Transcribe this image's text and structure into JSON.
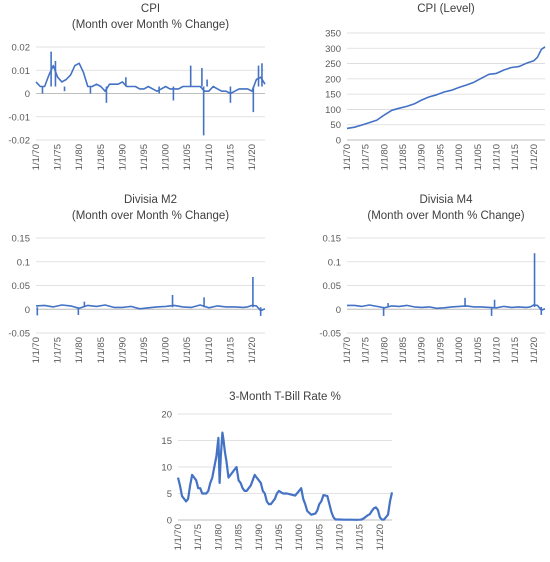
{
  "colors": {
    "series": "#4472c4",
    "grid": "#d9d9d9",
    "axis": "#bfbfbf",
    "text": "#595959"
  },
  "x_tick_labels": [
    "1/1/70",
    "1/1/75",
    "1/1/80",
    "1/1/85",
    "1/1/90",
    "1/1/95",
    "1/1/00",
    "1/1/05",
    "1/1/10",
    "1/1/15",
    "1/1/20"
  ],
  "chart_data": [
    {
      "id": "cpi-mom",
      "type": "line",
      "title_lines": [
        "CPI",
        "(Month over Month % Change)"
      ],
      "x_range": [
        1970,
        2023
      ],
      "ylim": [
        -0.02,
        0.02
      ],
      "y_ticks": [
        -0.02,
        -0.01,
        0,
        0.01,
        0.02
      ],
      "y_tick_labels": [
        "-0.02",
        "-0.01",
        "0",
        "0.01",
        "0.02"
      ],
      "grid": true,
      "x": [
        1970,
        1971,
        1972,
        1973,
        1974,
        1975,
        1976,
        1977,
        1978,
        1979,
        1980,
        1981,
        1982,
        1983,
        1984,
        1985,
        1986,
        1987,
        1988,
        1989,
        1990,
        1991,
        1992,
        1993,
        1994,
        1995,
        1996,
        1997,
        1998,
        1999,
        2000,
        2001,
        2002,
        2003,
        2004,
        2005,
        2006,
        2007,
        2008,
        2009,
        2010,
        2011,
        2012,
        2013,
        2014,
        2015,
        2016,
        2017,
        2018,
        2019,
        2020,
        2021,
        2022,
        2023
      ],
      "values": [
        0.005,
        0.003,
        0.003,
        0.008,
        0.012,
        0.007,
        0.005,
        0.006,
        0.008,
        0.012,
        0.013,
        0.009,
        0.003,
        0.003,
        0.004,
        0.003,
        0.001,
        0.004,
        0.004,
        0.004,
        0.005,
        0.003,
        0.003,
        0.003,
        0.002,
        0.002,
        0.003,
        0.002,
        0.001,
        0.002,
        0.003,
        0.002,
        0.002,
        0.002,
        0.003,
        0.003,
        0.003,
        0.003,
        0.003,
        0.001,
        0.001,
        0.003,
        0.002,
        0.001,
        0.001,
        0.0,
        0.001,
        0.002,
        0.002,
        0.002,
        0.001,
        0.006,
        0.007,
        0.004
      ],
      "spikes": [
        [
          1971.5,
          0.0
        ],
        [
          1973.5,
          0.018
        ],
        [
          1974.5,
          0.014
        ],
        [
          1976.6,
          0.001
        ],
        [
          1982.6,
          0.0
        ],
        [
          1986.3,
          -0.004
        ],
        [
          1990.8,
          0.007
        ],
        [
          1998.5,
          0.0
        ],
        [
          2001.8,
          -0.003
        ],
        [
          2005.8,
          0.012
        ],
        [
          2008.8,
          -0.018
        ],
        [
          2008.4,
          0.011
        ],
        [
          2009.6,
          0.006
        ],
        [
          2015.0,
          -0.004
        ],
        [
          2020.3,
          -0.008
        ],
        [
          2021.5,
          0.012
        ],
        [
          2022.3,
          0.013
        ]
      ]
    },
    {
      "id": "cpi-level",
      "type": "line",
      "title_lines": [
        "CPI (Level)"
      ],
      "x_range": [
        1970,
        2023
      ],
      "ylim": [
        0,
        350
      ],
      "y_ticks": [
        0,
        50,
        100,
        150,
        200,
        250,
        300,
        350
      ],
      "y_tick_labels": [
        "0",
        "50",
        "100",
        "150",
        "200",
        "250",
        "300",
        "350"
      ],
      "grid": true,
      "x": [
        1970,
        1972,
        1974,
        1976,
        1978,
        1980,
        1982,
        1984,
        1986,
        1988,
        1990,
        1992,
        1994,
        1996,
        1998,
        2000,
        2002,
        2004,
        2006,
        2008,
        2010,
        2012,
        2014,
        2016,
        2018,
        2020,
        2021,
        2022,
        2023
      ],
      "values": [
        38,
        42,
        49,
        57,
        65,
        82,
        97,
        104,
        110,
        118,
        131,
        141,
        148,
        157,
        163,
        172,
        180,
        189,
        202,
        215,
        218,
        229,
        237,
        240,
        251,
        259,
        271,
        296,
        305
      ]
    },
    {
      "id": "divisia-m2",
      "type": "line",
      "title_lines": [
        "Divisia M2",
        "(Month over Month % Change)"
      ],
      "x_range": [
        1970,
        2023
      ],
      "ylim": [
        -0.05,
        0.15
      ],
      "y_ticks": [
        -0.05,
        0,
        0.05,
        0.1,
        0.15
      ],
      "y_tick_labels": [
        "-0.05",
        "0",
        "0.05",
        "0.1",
        "0.15"
      ],
      "grid": true,
      "x": [
        1970,
        1972,
        1974,
        1976,
        1978,
        1980,
        1982,
        1984,
        1986,
        1988,
        1990,
        1992,
        1994,
        1996,
        1998,
        2000,
        2002,
        2004,
        2006,
        2008,
        2010,
        2012,
        2014,
        2016,
        2018,
        2019,
        2020,
        2021,
        2022,
        2023
      ],
      "values": [
        0.007,
        0.008,
        0.005,
        0.009,
        0.007,
        0.002,
        0.008,
        0.006,
        0.009,
        0.004,
        0.004,
        0.006,
        0.001,
        0.003,
        0.005,
        0.006,
        0.008,
        0.005,
        0.004,
        0.009,
        0.003,
        0.007,
        0.005,
        0.005,
        0.004,
        0.005,
        0.008,
        0.007,
        -0.003,
        0.001
      ],
      "spikes": [
        [
          1970.3,
          -0.013
        ],
        [
          1979.8,
          -0.012
        ],
        [
          1981.2,
          0.016
        ],
        [
          2001.6,
          0.03
        ],
        [
          2008.9,
          0.025
        ],
        [
          2020.2,
          0.068
        ],
        [
          2022.0,
          -0.014
        ]
      ]
    },
    {
      "id": "divisia-m4",
      "type": "line",
      "title_lines": [
        "Divisia M4",
        "(Month over Month % Change)"
      ],
      "x_range": [
        1970,
        2023
      ],
      "ylim": [
        -0.05,
        0.15
      ],
      "y_ticks": [
        -0.05,
        0,
        0.05,
        0.1,
        0.15
      ],
      "y_tick_labels": [
        "-0.05",
        "0",
        "0.05",
        "0.1",
        "0.15"
      ],
      "grid": true,
      "x": [
        1970,
        1972,
        1974,
        1976,
        1978,
        1980,
        1982,
        1984,
        1986,
        1988,
        1990,
        1992,
        1994,
        1996,
        1998,
        2000,
        2002,
        2004,
        2006,
        2008,
        2010,
        2012,
        2014,
        2016,
        2018,
        2019,
        2020,
        2021,
        2022,
        2023
      ],
      "values": [
        0.008,
        0.008,
        0.006,
        0.009,
        0.006,
        0.003,
        0.007,
        0.006,
        0.008,
        0.005,
        0.004,
        0.005,
        0.002,
        0.003,
        0.005,
        0.006,
        0.007,
        0.005,
        0.005,
        0.004,
        0.003,
        0.006,
        0.004,
        0.005,
        0.004,
        0.005,
        0.009,
        0.008,
        -0.002,
        0.001
      ],
      "spikes": [
        [
          1979.8,
          -0.014
        ],
        [
          1981.0,
          0.013
        ],
        [
          2001.6,
          0.024
        ],
        [
          2008.7,
          -0.014
        ],
        [
          2009.5,
          0.02
        ],
        [
          2020.2,
          0.118
        ],
        [
          2022.0,
          -0.012
        ]
      ]
    },
    {
      "id": "tbill",
      "type": "line",
      "title_lines": [
        "3-Month T-Bill Rate %"
      ],
      "x_range": [
        1970,
        2023
      ],
      "ylim": [
        0,
        20
      ],
      "y_ticks": [
        0,
        5,
        10,
        15,
        20
      ],
      "y_tick_labels": [
        "0",
        "5",
        "10",
        "15",
        "20"
      ],
      "grid": true,
      "x": [
        1970.0,
        1970.5,
        1971.0,
        1971.5,
        1972.0,
        1972.5,
        1973.0,
        1973.5,
        1974.0,
        1974.5,
        1975.0,
        1975.5,
        1976.0,
        1976.5,
        1977.0,
        1977.5,
        1978.0,
        1978.5,
        1979.0,
        1979.5,
        1980.0,
        1980.3,
        1980.6,
        1981.0,
        1981.3,
        1981.6,
        1982.0,
        1982.5,
        1983.0,
        1983.5,
        1984.0,
        1984.5,
        1985.0,
        1985.5,
        1986.0,
        1986.5,
        1987.0,
        1987.5,
        1988.0,
        1988.5,
        1989.0,
        1989.5,
        1990.0,
        1990.5,
        1991.0,
        1991.5,
        1992.0,
        1992.5,
        1993.0,
        1994.0,
        1994.5,
        1995.0,
        1996.0,
        1997.0,
        1998.0,
        1999.0,
        2000.0,
        2000.5,
        2001.0,
        2001.5,
        2002.0,
        2003.0,
        2004.0,
        2004.5,
        2005.0,
        2005.5,
        2006.0,
        2007.0,
        2007.5,
        2008.0,
        2008.5,
        2009.0,
        2010.0,
        2011.0,
        2012.0,
        2013.0,
        2014.0,
        2015.0,
        2015.5,
        2016.0,
        2017.0,
        2017.5,
        2018.0,
        2018.5,
        2019.0,
        2019.5,
        2020.0,
        2020.5,
        2021.0,
        2022.0,
        2022.5,
        2023.0
      ],
      "values": [
        8.0,
        6.5,
        4.5,
        4.0,
        3.5,
        4.0,
        6.5,
        8.5,
        8.0,
        7.5,
        6.0,
        6.0,
        5.0,
        5.0,
        5.0,
        5.5,
        7.0,
        8.0,
        10.0,
        12.0,
        15.5,
        7.0,
        12.0,
        16.5,
        15.0,
        13.0,
        11.0,
        8.0,
        8.5,
        9.0,
        9.5,
        10.0,
        7.5,
        7.0,
        6.0,
        5.5,
        5.5,
        6.0,
        6.5,
        7.5,
        8.5,
        8.0,
        7.5,
        7.0,
        5.5,
        5.0,
        3.5,
        3.0,
        3.0,
        4.0,
        5.0,
        5.5,
        5.0,
        5.0,
        4.8,
        4.6,
        5.5,
        6.0,
        4.0,
        3.0,
        1.7,
        1.0,
        1.2,
        1.8,
        3.0,
        3.5,
        4.7,
        4.5,
        3.0,
        1.5,
        0.5,
        0.1,
        0.1,
        0.05,
        0.05,
        0.05,
        0.03,
        0.05,
        0.1,
        0.3,
        0.9,
        1.1,
        1.7,
        2.2,
        2.4,
        1.9,
        0.5,
        0.1,
        0.05,
        1.0,
        3.5,
        5.2
      ]
    }
  ]
}
